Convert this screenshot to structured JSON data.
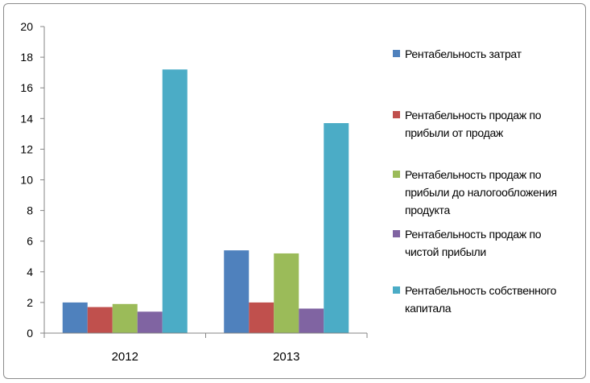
{
  "chart_data": {
    "type": "bar",
    "title": "",
    "xlabel": "",
    "ylabel": "",
    "categories": [
      "2012",
      "2013"
    ],
    "ylim": [
      0,
      20
    ],
    "yticks": [
      0,
      2,
      4,
      6,
      8,
      10,
      12,
      14,
      16,
      18,
      20
    ],
    "grid": false,
    "legend_position": "right",
    "series": [
      {
        "name": "Рентабельность затрат",
        "color": "#4f81bd",
        "values": [
          2.0,
          5.4
        ]
      },
      {
        "name": "Рентабельность продаж по прибыли от продаж",
        "color": "#c0504d",
        "values": [
          1.7,
          2.0
        ]
      },
      {
        "name": "Рентабельность продаж по прибыли до налогообложения продукта",
        "color": "#9bbb59",
        "values": [
          1.9,
          5.2
        ]
      },
      {
        "name": "Рентабельность продаж по чистой прибыли",
        "color": "#8064a2",
        "values": [
          1.4,
          1.6
        ]
      },
      {
        "name": "Рентабельность собственного капитала",
        "color": "#4bacc6",
        "values": [
          17.2,
          13.7
        ]
      }
    ]
  }
}
